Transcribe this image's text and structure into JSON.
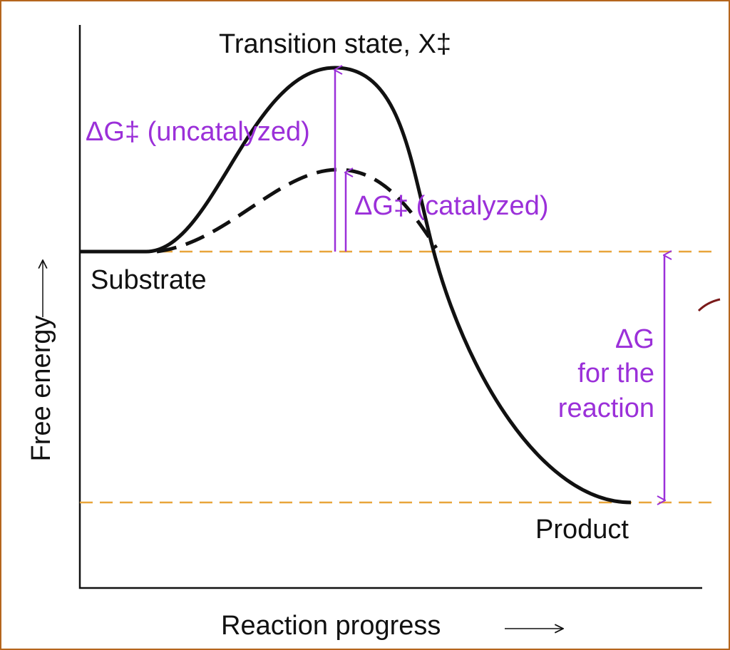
{
  "title": "Transition state, X‡",
  "labels": {
    "uncatalyzed": "ΔG‡ (uncatalyzed)",
    "catalyzed": "ΔG‡ (catalyzed)",
    "substrate": "Substrate",
    "product": "Product",
    "delta_g": [
      "ΔG",
      "for the",
      "reaction"
    ]
  },
  "axes": {
    "y_label": "Free energy",
    "x_label": "Reaction progress"
  }
}
